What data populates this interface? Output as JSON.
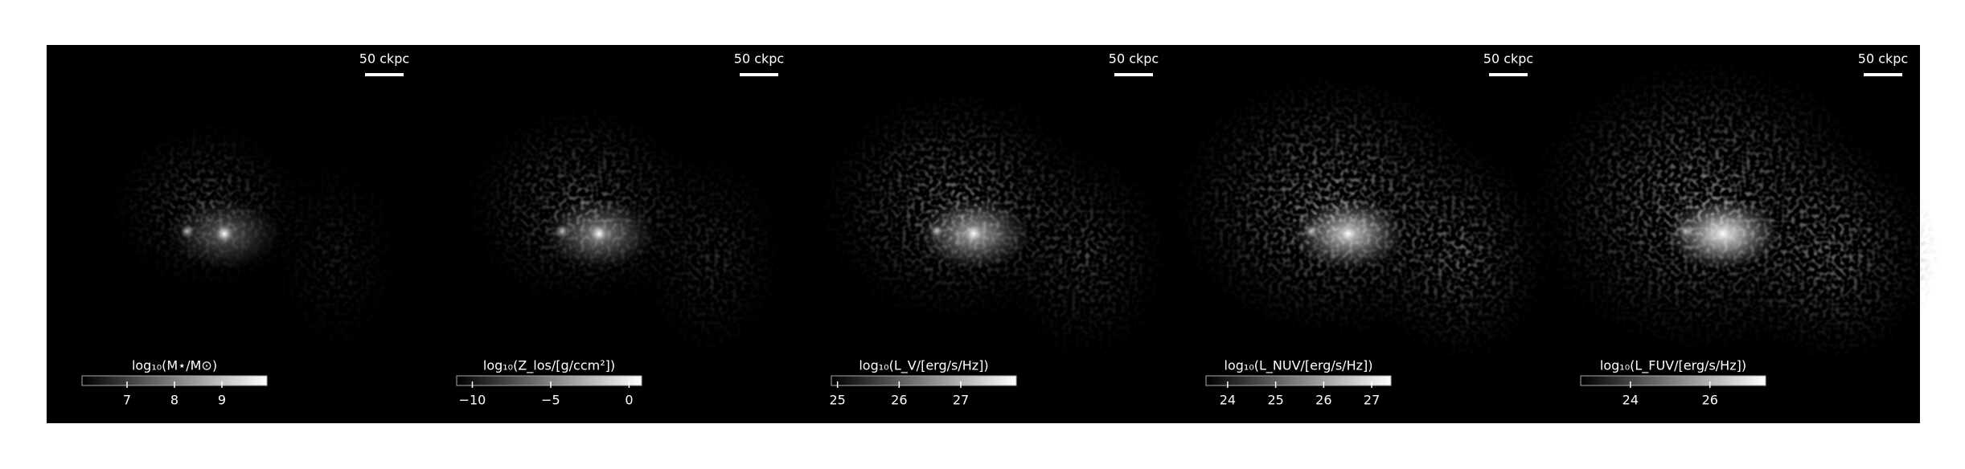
{
  "chart_data": [
    {
      "type": "heatmap",
      "scale_bar": "50 ckpc",
      "colorbar": {
        "label": "log₁₀(M⋆/M⊙)",
        "lim": [
          6.05,
          9.95
        ],
        "ticks": [
          7,
          8,
          9
        ]
      }
    },
    {
      "type": "heatmap",
      "scale_bar": "50 ckpc",
      "colorbar": {
        "label": "log₁₀(Z_los/[g/ccm²])",
        "lim": [
          -11,
          0.8
        ],
        "ticks": [
          {
            "value": -10,
            "label": "−10"
          },
          {
            "value": -5,
            "label": "−5"
          },
          0
        ]
      }
    },
    {
      "type": "heatmap",
      "scale_bar": "50 ckpc",
      "colorbar": {
        "label": "log₁₀(L_V/[erg/s/Hz])",
        "lim": [
          24.9,
          27.9
        ],
        "ticks": [
          25,
          26,
          27
        ]
      }
    },
    {
      "type": "heatmap",
      "scale_bar": "50 ckpc",
      "colorbar": {
        "label": "log₁₀(L_NUV/[erg/s/Hz])",
        "lim": [
          23.55,
          27.4
        ],
        "ticks": [
          24,
          25,
          26,
          27
        ]
      }
    },
    {
      "type": "heatmap",
      "scale_bar": "50 ckpc",
      "colorbar": {
        "label": "log₁₀(L_FUV/[erg/s/Hz])",
        "lim": [
          22.75,
          27.4
        ],
        "ticks": [
          24,
          26
        ]
      }
    }
  ]
}
